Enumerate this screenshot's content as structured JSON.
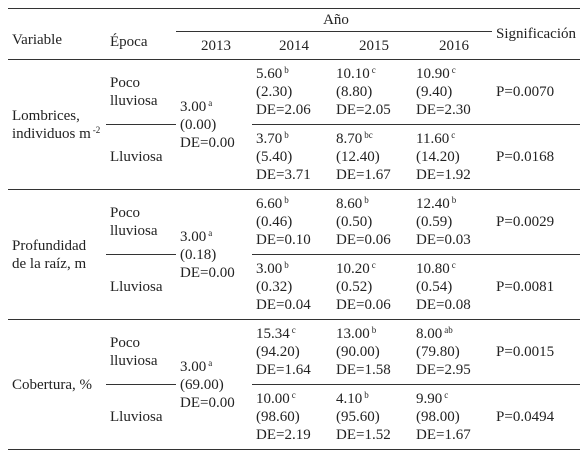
{
  "header": {
    "variable": "Variable",
    "epoca": "Época",
    "ano": "Año",
    "years": [
      "2013",
      "2014",
      "2015",
      "2016"
    ],
    "significance": "Significación"
  },
  "groups": [
    {
      "variable": [
        "Lombrices,",
        "individuos m"
      ],
      "variable_sup": "-2",
      "base": {
        "mean": "3.00",
        "sup": "a",
        "paren": "(0.00)",
        "de": "DE=0.00"
      },
      "seasons": [
        {
          "epoca": [
            "Poco",
            "lluviosa"
          ],
          "cells": [
            {
              "mean": "5.60",
              "sup": "b",
              "paren": "(2.30)",
              "de": "DE=2.06"
            },
            {
              "mean": "10.10",
              "sup": "c",
              "paren": "(8.80)",
              "de": "DE=2.05"
            },
            {
              "mean": "10.90",
              "sup": "c",
              "paren": "(9.40)",
              "de": "DE=2.30"
            }
          ],
          "p": "P=0.0070"
        },
        {
          "epoca": [
            "Lluviosa"
          ],
          "cells": [
            {
              "mean": "3.70",
              "sup": "b",
              "paren": "(5.40)",
              "de": "DE=3.71"
            },
            {
              "mean": "8.70",
              "sup": "bc",
              "paren": "(12.40)",
              "de": "DE=1.67"
            },
            {
              "mean": "11.60",
              "sup": "c",
              "paren": "(14.20)",
              "de": "DE=1.92"
            }
          ],
          "p": "P=0.0168"
        }
      ]
    },
    {
      "variable": [
        "Profundidad",
        "de la raíz, m"
      ],
      "base": {
        "mean": "3.00",
        "sup": "a",
        "paren": "(0.18)",
        "de": "DE=0.00"
      },
      "seasons": [
        {
          "epoca": [
            "Poco",
            "lluviosa"
          ],
          "cells": [
            {
              "mean": "6.60",
              "sup": "b",
              "paren": "(0.46)",
              "de": "DE=0.10"
            },
            {
              "mean": "8.60",
              "sup": "b",
              "paren": "(0.50)",
              "de": "DE=0.06"
            },
            {
              "mean": "12.40",
              "sup": "b",
              "paren": "(0.59)",
              "de": "DE=0.03"
            }
          ],
          "p": "P=0.0029"
        },
        {
          "epoca": [
            "Lluviosa"
          ],
          "cells": [
            {
              "mean": "3.00",
              "sup": "b",
              "paren": "(0.32)",
              "de": "DE=0.04"
            },
            {
              "mean": "10.20",
              "sup": "c",
              "paren": "(0.52)",
              "de": "DE=0.06"
            },
            {
              "mean": "10.80",
              "sup": "c",
              "paren": "(0.54)",
              "de": "DE=0.08"
            }
          ],
          "p": "P=0.0081"
        }
      ]
    },
    {
      "variable": [
        "Cobertura, %"
      ],
      "base": {
        "mean": "3.00",
        "sup": "a",
        "paren": "(69.00)",
        "de": "DE=0.00"
      },
      "seasons": [
        {
          "epoca": [
            "Poco",
            "lluviosa"
          ],
          "cells": [
            {
              "mean": "15.34",
              "sup": "c",
              "paren": "(94.20)",
              "de": "DE=1.64"
            },
            {
              "mean": "13.00",
              "sup": "b",
              "paren": "(90.00)",
              "de": "DE=1.58"
            },
            {
              "mean": "8.00",
              "sup": "ab",
              "paren": "(79.80)",
              "de": "DE=2.95"
            }
          ],
          "p": "P=0.0015"
        },
        {
          "epoca": [
            "Lluviosa"
          ],
          "cells": [
            {
              "mean": "10.00",
              "sup": "c",
              "paren": "(98.60)",
              "de": "DE=2.19"
            },
            {
              "mean": "4.10",
              "sup": "b",
              "paren": "(95.60)",
              "de": "DE=1.52"
            },
            {
              "mean": "9.90",
              "sup": "c",
              "paren": "(98.00)",
              "de": "DE=1.67"
            }
          ],
          "p": "P=0.0494"
        }
      ]
    }
  ]
}
